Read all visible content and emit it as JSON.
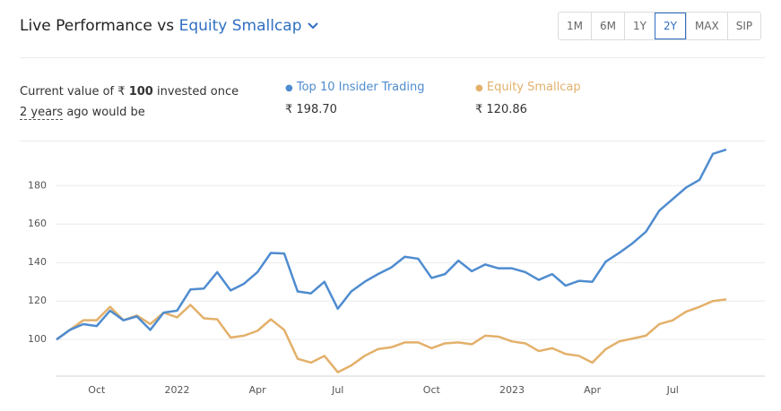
{
  "header": {
    "title": "Live Performance vs",
    "benchmark": "Equity Smallcap"
  },
  "periods": [
    {
      "label": "1M",
      "selected": false
    },
    {
      "label": "6M",
      "selected": false
    },
    {
      "label": "1Y",
      "selected": false
    },
    {
      "label": "2Y",
      "selected": true
    },
    {
      "label": "MAX",
      "selected": false
    },
    {
      "label": "SIP",
      "selected": false
    }
  ],
  "summary": {
    "prefix": "Current value of ₹",
    "amount": "100",
    "suffix": "invested once",
    "period": "2 years",
    "tail": "ago would be"
  },
  "chart_data": {
    "type": "line",
    "categories": [
      null,
      null,
      null,
      "Oct",
      null,
      null,
      null,
      null,
      null,
      "2022",
      null,
      null,
      null,
      null,
      null,
      "Apr",
      null,
      null,
      null,
      null,
      null,
      "Jul",
      null,
      null,
      null,
      null,
      null,
      null,
      "Oct",
      null,
      null,
      null,
      null,
      null,
      "2023",
      null,
      null,
      null,
      null,
      null,
      "Apr",
      null,
      null,
      null,
      null,
      null,
      "Jul",
      null,
      null,
      null,
      null
    ],
    "series": [
      {
        "name": "Top 10 Insider Trading",
        "current_value": "₹ 198.70",
        "color": "#4f8ccf",
        "values": [
          100,
          105,
          108,
          107,
          115,
          110,
          112,
          105,
          114,
          115,
          126,
          126.5,
          135,
          125.5,
          129,
          135,
          145,
          144.7,
          125,
          124,
          130,
          116,
          125,
          130,
          134,
          137.5,
          143,
          142,
          132,
          134,
          141,
          135.5,
          139,
          137,
          137,
          135,
          131,
          134,
          128,
          130.5,
          130,
          140.5,
          145,
          150,
          156,
          167,
          173,
          179,
          183,
          196.5,
          198.7
        ]
      },
      {
        "name": "Equity Smallcap",
        "current_value": "₹ 120.86",
        "color": "#e3b06a",
        "values": [
          100,
          105,
          110,
          110,
          117,
          110,
          112.5,
          108,
          114,
          111.5,
          118,
          111,
          110.5,
          101,
          102,
          104.5,
          110.5,
          105,
          90,
          88,
          91.5,
          83,
          86.5,
          91.5,
          95,
          96,
          98.5,
          98.5,
          95.5,
          98,
          98.5,
          97.5,
          102,
          101.5,
          99,
          98,
          94,
          95.5,
          92.5,
          91.5,
          88,
          95,
          99,
          100.5,
          102,
          108,
          110,
          114.5,
          117,
          120,
          120.86
        ]
      }
    ],
    "ylim": [
      81,
      202
    ],
    "yticks": [
      100,
      120,
      140,
      160,
      180
    ],
    "grid": true
  }
}
